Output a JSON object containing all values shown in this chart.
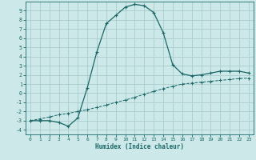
{
  "xlabel": "Humidex (Indice chaleur)",
  "bg_color": "#cce8e8",
  "grid_color": "#aacccc",
  "line_color": "#1a6666",
  "xlim": [
    -0.5,
    23.5
  ],
  "ylim": [
    -4.5,
    10.0
  ],
  "xticks": [
    0,
    1,
    2,
    3,
    4,
    5,
    6,
    7,
    8,
    9,
    10,
    11,
    12,
    13,
    14,
    15,
    16,
    17,
    18,
    19,
    20,
    21,
    22,
    23
  ],
  "yticks": [
    -4,
    -3,
    -2,
    -1,
    0,
    1,
    2,
    3,
    4,
    5,
    6,
    7,
    8,
    9
  ],
  "curve1_x": [
    0,
    1,
    2,
    3,
    4,
    5,
    6,
    7,
    8,
    9,
    10,
    11,
    12,
    13,
    14,
    15,
    16,
    17,
    18,
    19,
    20,
    21,
    22,
    23
  ],
  "curve1_y": [
    -3.0,
    -3.0,
    -3.0,
    -3.2,
    -3.6,
    -2.7,
    0.6,
    4.5,
    7.6,
    8.5,
    9.4,
    9.7,
    9.55,
    8.8,
    6.6,
    3.1,
    2.1,
    1.9,
    2.0,
    2.2,
    2.4,
    2.4,
    2.4,
    2.2
  ],
  "curve2_x": [
    0,
    1,
    2,
    3,
    4,
    5,
    6,
    7,
    8,
    9,
    10,
    11,
    12,
    13,
    14,
    15,
    16,
    17,
    18,
    19,
    20,
    21,
    22,
    23
  ],
  "curve2_y": [
    -3.0,
    -2.8,
    -2.6,
    -2.35,
    -2.2,
    -2.0,
    -1.8,
    -1.55,
    -1.3,
    -1.0,
    -0.75,
    -0.45,
    -0.1,
    0.2,
    0.5,
    0.75,
    1.0,
    1.1,
    1.2,
    1.3,
    1.4,
    1.5,
    1.6,
    1.65
  ]
}
